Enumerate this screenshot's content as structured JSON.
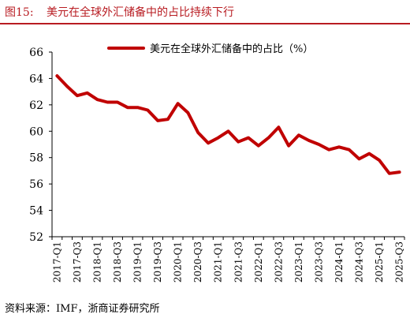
{
  "header": {
    "figure_label": "图15:",
    "title": "美元在全球外汇储备中的占比持续下行"
  },
  "footer": {
    "source": "资料来源：IMF，浙商证券研究所"
  },
  "chart_data": {
    "type": "line",
    "title": "美元在全球外汇储备中的占比持续下行",
    "xlabel": "",
    "ylabel": "",
    "ylim": [
      52,
      66
    ],
    "yticks": [
      52,
      54,
      56,
      58,
      60,
      62,
      64,
      66
    ],
    "grid": false,
    "legend_position": "top-center",
    "x": [
      "2017-Q1",
      "2017-Q2",
      "2017-Q3",
      "2017-Q4",
      "2018-Q1",
      "2018-Q2",
      "2018-Q3",
      "2018-Q4",
      "2019-Q1",
      "2019-Q2",
      "2019-Q3",
      "2019-Q4",
      "2020-Q1",
      "2020-Q2",
      "2020-Q3",
      "2020-Q4",
      "2021-Q1",
      "2021-Q2",
      "2021-Q3",
      "2021-Q4",
      "2022-Q1",
      "2022-Q2",
      "2022-Q3",
      "2022-Q4",
      "2023-Q1",
      "2023-Q2",
      "2023-Q3",
      "2023-Q4",
      "2024-Q1",
      "2024-Q2",
      "2024-Q3",
      "2024-Q4",
      "2025-Q1",
      "2025-Q2",
      "2025-Q3"
    ],
    "x_tick_labels": [
      "2017-Q1",
      "2017-Q3",
      "2018-Q1",
      "2018-Q3",
      "2019-Q1",
      "2019-Q3",
      "2020-Q1",
      "2020-Q3",
      "2021-Q1",
      "2021-Q3",
      "2022-Q1",
      "2022-Q3",
      "2023-Q1",
      "2023-Q3",
      "2024-Q1",
      "2024-Q3",
      "2025-Q1",
      "2025-Q3"
    ],
    "series": [
      {
        "name": "美元在全球外汇储备中的占比（%）",
        "color": "#c00000",
        "values": [
          64.2,
          63.4,
          62.7,
          62.9,
          62.4,
          62.2,
          62.2,
          61.8,
          61.8,
          61.6,
          60.8,
          60.9,
          62.1,
          61.4,
          59.9,
          59.1,
          59.5,
          60.0,
          59.2,
          59.5,
          58.9,
          59.5,
          60.3,
          58.9,
          59.7,
          59.3,
          59.0,
          58.6,
          58.8,
          58.6,
          57.9,
          58.3,
          57.8,
          56.8,
          56.9
        ]
      }
    ]
  }
}
